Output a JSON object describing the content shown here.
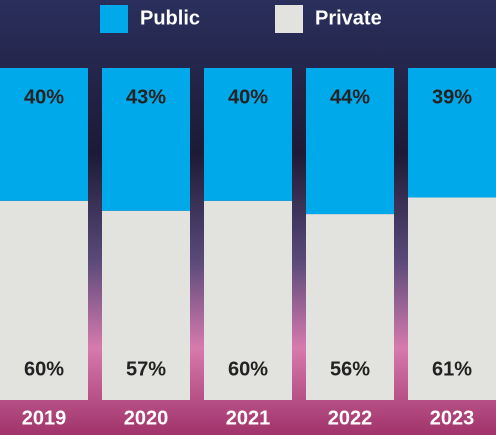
{
  "chart_data": {
    "type": "stacked_bar",
    "categories": [
      "2019",
      "2020",
      "2021",
      "2022",
      "2023"
    ],
    "series": [
      {
        "name": "Private",
        "color": "#e2e2de",
        "values": [
          60,
          57,
          60,
          56,
          61
        ],
        "value_labels": [
          "60%",
          "57%",
          "60%",
          "56%",
          "61%"
        ]
      },
      {
        "name": "Public",
        "color": "#00a9ea",
        "values": [
          40,
          43,
          40,
          44,
          39
        ],
        "value_labels": [
          "40%",
          "43%",
          "40%",
          "44%",
          "39%"
        ]
      }
    ],
    "ylim": [
      0,
      100
    ]
  }
}
